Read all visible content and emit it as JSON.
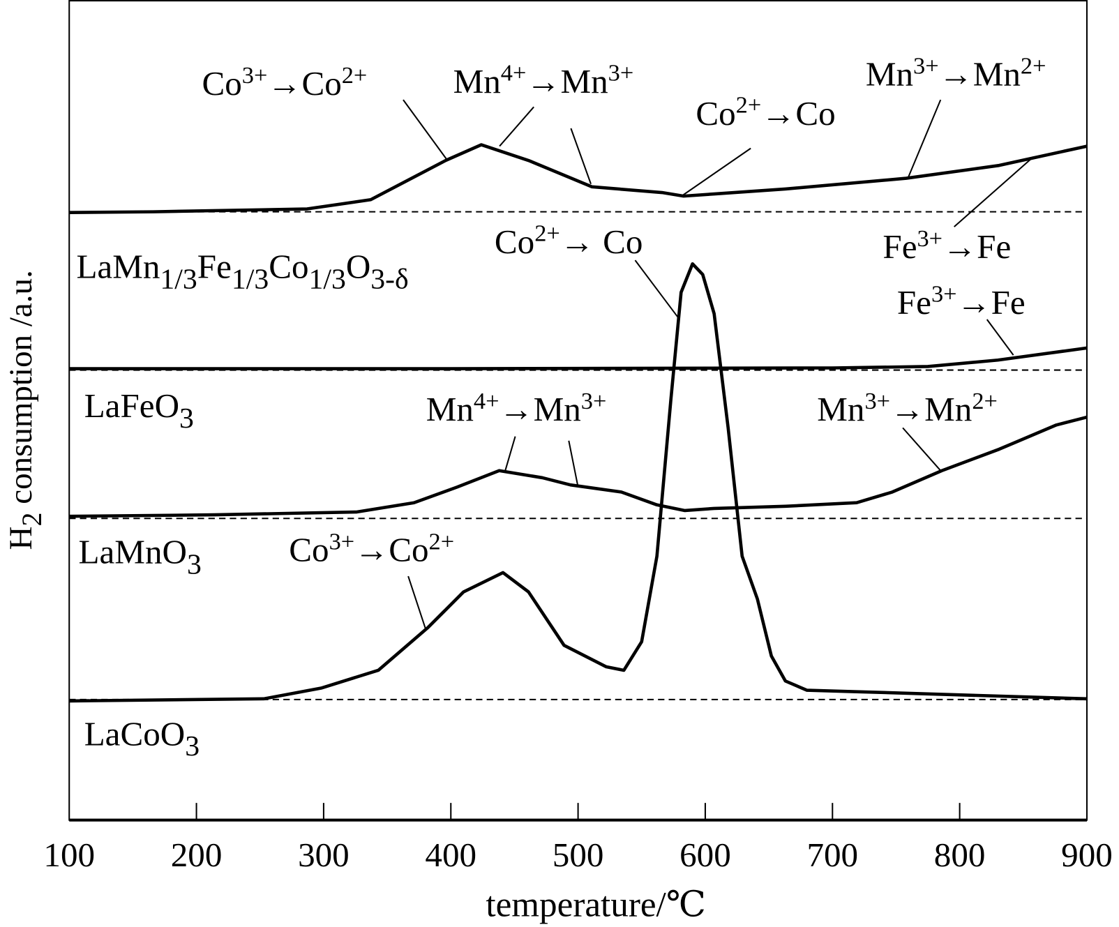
{
  "chart_data": {
    "type": "line",
    "title": "",
    "xlabel": "temperature/℃",
    "ylabel_parts": [
      [
        "H",
        ""
      ],
      [
        "2",
        "sub"
      ],
      [
        " consumption /a.u.",
        ""
      ]
    ],
    "xlim": [
      100,
      900
    ],
    "ylim": [
      0,
      115
    ],
    "x_ticks": [
      "100",
      "200",
      "300",
      "400",
      "500",
      "600",
      "700",
      "800",
      "900"
    ],
    "y_ticks": [],
    "grid": false,
    "line_color": "#000000",
    "series": [
      {
        "label_parts": [
          [
            "LaMn",
            ""
          ],
          [
            "1/3",
            "sub"
          ],
          [
            "Fe",
            ""
          ],
          [
            "1/3",
            "sub"
          ],
          [
            "Co",
            ""
          ],
          [
            "1/3",
            "sub"
          ],
          [
            "O",
            ""
          ],
          [
            "3-δ",
            "sub"
          ]
        ],
        "baseline": 85.3,
        "x": [
          100,
          166,
          287,
          337,
          396,
          424,
          461,
          511,
          566,
          583,
          607,
          663,
          758,
          831,
          900
        ],
        "y": [
          85.2,
          85.3,
          85.7,
          87,
          92.5,
          94.7,
          92.5,
          88.8,
          88,
          87.5,
          87.8,
          88.5,
          90,
          91.8,
          94.5
        ]
      },
      {
        "label_parts": [
          [
            "LaFeO",
            ""
          ],
          [
            "3",
            "sub"
          ]
        ],
        "baseline": 63.1,
        "x": [
          100,
          400,
          700,
          775,
          830,
          900
        ],
        "y": [
          63.3,
          63.3,
          63.4,
          63.6,
          64.5,
          66.2
        ]
      },
      {
        "label_parts": [
          [
            "LaMnO",
            ""
          ],
          [
            "3",
            "sub"
          ]
        ],
        "baseline": 42.3,
        "x": [
          100,
          214,
          326,
          371,
          405,
          438,
          472,
          494,
          534,
          562,
          584,
          607,
          663,
          719,
          747,
          786,
          831,
          876,
          900
        ],
        "y": [
          42.6,
          42.8,
          43.2,
          44.5,
          46.7,
          49,
          48,
          47,
          46,
          44.2,
          43.4,
          43.7,
          44,
          44.5,
          46,
          49,
          52,
          55.4,
          56.5
        ]
      },
      {
        "label_parts": [
          [
            "LaCoO",
            ""
          ],
          [
            "3",
            "sub"
          ]
        ],
        "baseline": 16.9,
        "x": [
          100,
          253,
          298,
          343,
          382,
          410,
          441,
          461,
          489,
          522,
          536,
          550,
          562,
          573,
          581,
          590,
          598,
          607,
          618,
          629,
          641,
          652,
          663,
          680,
          719,
          900
        ],
        "y": [
          16.7,
          17,
          18.5,
          21,
          27,
          32,
          34.7,
          32,
          24.5,
          21.5,
          21,
          25,
          37,
          59,
          74,
          78,
          76.5,
          71,
          55,
          37,
          31,
          23,
          19.5,
          18.2,
          18,
          17
        ]
      }
    ],
    "annotations": [
      {
        "parts": [
          [
            "Co",
            ""
          ],
          [
            "3+",
            "sup"
          ],
          [
            "→",
            ""
          ],
          [
            "Co",
            ""
          ],
          [
            "2+",
            "sup"
          ]
        ]
      },
      {
        "parts": [
          [
            "Mn",
            ""
          ],
          [
            "4+",
            "sup"
          ],
          [
            "→",
            ""
          ],
          [
            "Mn",
            ""
          ],
          [
            "3+",
            "sup"
          ]
        ]
      },
      {
        "parts": [
          [
            "Co",
            ""
          ],
          [
            "2+",
            "sup"
          ],
          [
            "→",
            ""
          ],
          [
            "Co",
            ""
          ]
        ]
      },
      {
        "parts": [
          [
            "Mn",
            ""
          ],
          [
            "3+",
            "sup"
          ],
          [
            "→",
            ""
          ],
          [
            "Mn",
            ""
          ],
          [
            "2+",
            "sup"
          ]
        ]
      },
      {
        "parts": [
          [
            "Fe",
            ""
          ],
          [
            "3+",
            "sup"
          ],
          [
            "→",
            ""
          ],
          [
            "Fe",
            ""
          ]
        ]
      },
      {
        "parts": [
          [
            "Co",
            ""
          ],
          [
            "2+",
            "sup"
          ],
          [
            "→ ",
            ""
          ],
          [
            "Co",
            ""
          ]
        ]
      },
      {
        "parts": [
          [
            "Fe",
            ""
          ],
          [
            "3+",
            "sup"
          ],
          [
            "→",
            ""
          ],
          [
            "Fe",
            ""
          ]
        ]
      },
      {
        "parts": [
          [
            "Mn",
            ""
          ],
          [
            "4+",
            "sup"
          ],
          [
            "→",
            ""
          ],
          [
            "Mn",
            ""
          ],
          [
            "3+",
            "sup"
          ]
        ]
      },
      {
        "parts": [
          [
            "Mn",
            ""
          ],
          [
            "3+",
            "sup"
          ],
          [
            "→",
            ""
          ],
          [
            "Mn",
            ""
          ],
          [
            "2+",
            "sup"
          ]
        ]
      },
      {
        "parts": [
          [
            "Co",
            ""
          ],
          [
            "3+",
            "sup"
          ],
          [
            "→",
            ""
          ],
          [
            "Co",
            ""
          ],
          [
            "2+",
            "sup"
          ]
        ]
      }
    ]
  }
}
